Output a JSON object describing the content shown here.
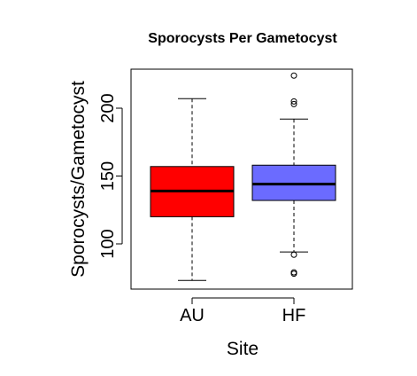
{
  "chart_data": {
    "type": "box",
    "title": "Sporocysts Per Gametocyst",
    "xlabel": "Site",
    "ylabel": "Sporocysts/Gametocyst",
    "ylim": [
      65,
      230
    ],
    "yticks": [
      100,
      150,
      200
    ],
    "ytick_labels": [
      "100",
      "150",
      "200"
    ],
    "categories": [
      "AU",
      "HF"
    ],
    "series": [
      {
        "category": "AU",
        "color": "#ff0000",
        "whisker_low": 73,
        "q1": 120,
        "median": 139,
        "q3": 157,
        "whisker_high": 207,
        "outliers": []
      },
      {
        "category": "HF",
        "color": "#6b6bff",
        "whisker_low": 94,
        "q1": 132,
        "median": 144,
        "q3": 158,
        "whisker_high": 192,
        "outliers": [
          78,
          79,
          92,
          203,
          205,
          224
        ]
      }
    ]
  }
}
